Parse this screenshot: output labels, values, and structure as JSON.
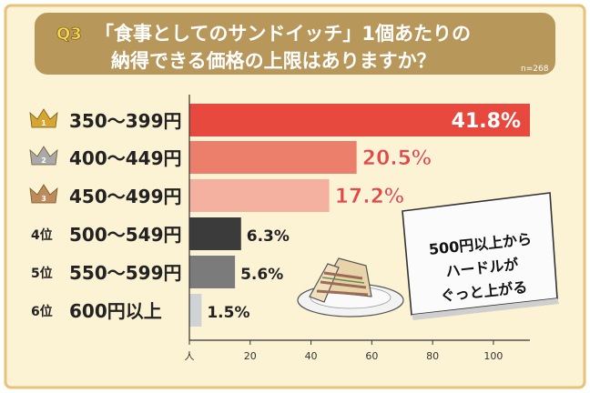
{
  "header": {
    "q_badge": "Q3",
    "title_line1": "「食事としてのサンドイッチ」1個あたりの",
    "title_line2": "納得できる価格の上限はありますか？",
    "sample": "n=268"
  },
  "note": {
    "line1": "500円以上から",
    "line2": "ハードルが",
    "line3": "ぐっと上がる"
  },
  "colors": {
    "background": "#fbf3d4",
    "header_bg": "#b8975a",
    "accent_border": "#e8c27a",
    "crown_gold": "#d9a531",
    "crown_silver": "#a9a9a9",
    "crown_bronze": "#c08b5c"
  },
  "chart_data": {
    "type": "bar",
    "orientation": "horizontal",
    "unit": "人",
    "categories": [
      "350〜399円",
      "400〜449円",
      "450〜499円",
      "500〜549円",
      "550〜599円",
      "600円以上"
    ],
    "ranks": [
      "1",
      "2",
      "3",
      "4位",
      "5位",
      "6位"
    ],
    "values": [
      112,
      55,
      46,
      17,
      15,
      4
    ],
    "percent_labels": [
      "41.8%",
      "20.5%",
      "17.2%",
      "6.3%",
      "5.6%",
      "1.5%"
    ],
    "bar_colors": [
      "#e8493f",
      "#ec7f6b",
      "#f4b1a0",
      "#3b3b3b",
      "#7b7b7b",
      "#cfd3d6"
    ],
    "label_colors": [
      "#ffffff",
      "#e8493f",
      "#e8493f",
      "#222222",
      "#222222",
      "#222222"
    ],
    "xlim": [
      0,
      112
    ],
    "xticks": [
      0,
      20,
      40,
      60,
      80,
      100
    ],
    "xtick_labels": [
      "人",
      "20",
      "40",
      "60",
      "80",
      "100"
    ],
    "xlabel": "",
    "ylabel": "",
    "grid": false,
    "legend": "none"
  }
}
